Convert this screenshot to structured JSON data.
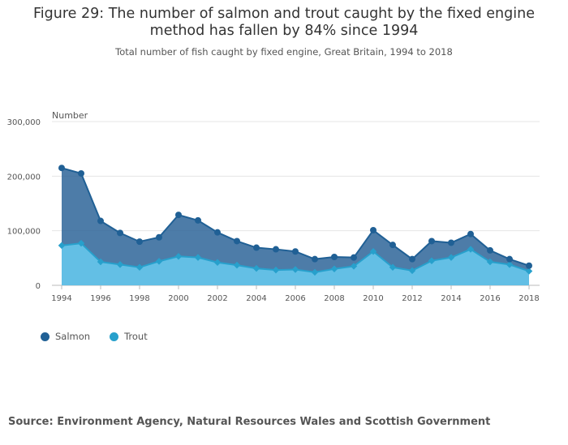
{
  "title": "Figure 29: The number of salmon and trout caught by the fixed engine method has fallen by 84% since 1994",
  "subtitle": "Total number of fish caught by fixed engine, Great Britain, 1994 to 2018",
  "source": "Source: Environment Agency, Natural Resources Wales and Scottish Government",
  "colors": {
    "salmon": "#206095",
    "trout": "#27a0cc",
    "salmon_fill": "#2e6599",
    "trout_fill": "#5bbce4"
  },
  "chart_data": {
    "type": "area",
    "ylabel": "Number",
    "xlabel": "",
    "ylim": [
      0,
      300000
    ],
    "yticks": [
      0,
      100000,
      200000,
      300000
    ],
    "ytick_labels": [
      "0",
      "100,000",
      "200,000",
      "300,000"
    ],
    "xticks": [
      1994,
      1996,
      1998,
      2000,
      2002,
      2004,
      2006,
      2008,
      2010,
      2012,
      2014,
      2016,
      2018
    ],
    "x": [
      1994,
      1995,
      1996,
      1997,
      1998,
      1999,
      2000,
      2001,
      2002,
      2003,
      2004,
      2005,
      2006,
      2007,
      2008,
      2009,
      2010,
      2011,
      2012,
      2013,
      2014,
      2015,
      2016,
      2017,
      2018
    ],
    "stacked": true,
    "grid": true,
    "legend_position": "bottom-left",
    "series": [
      {
        "name": "Salmon",
        "values": [
          142000,
          128000,
          75000,
          58000,
          47000,
          44000,
          76000,
          68000,
          55000,
          44000,
          38000,
          38000,
          33000,
          24000,
          22000,
          16000,
          39000,
          41000,
          21000,
          36000,
          27000,
          28000,
          21000,
          10000,
          10000
        ]
      },
      {
        "name": "Trout",
        "values": [
          73000,
          77000,
          43000,
          38000,
          33000,
          44000,
          53000,
          51000,
          42000,
          37000,
          31000,
          28000,
          29000,
          24000,
          30000,
          35000,
          62000,
          33000,
          27000,
          45000,
          51000,
          66000,
          43000,
          38000,
          26000
        ]
      }
    ]
  }
}
